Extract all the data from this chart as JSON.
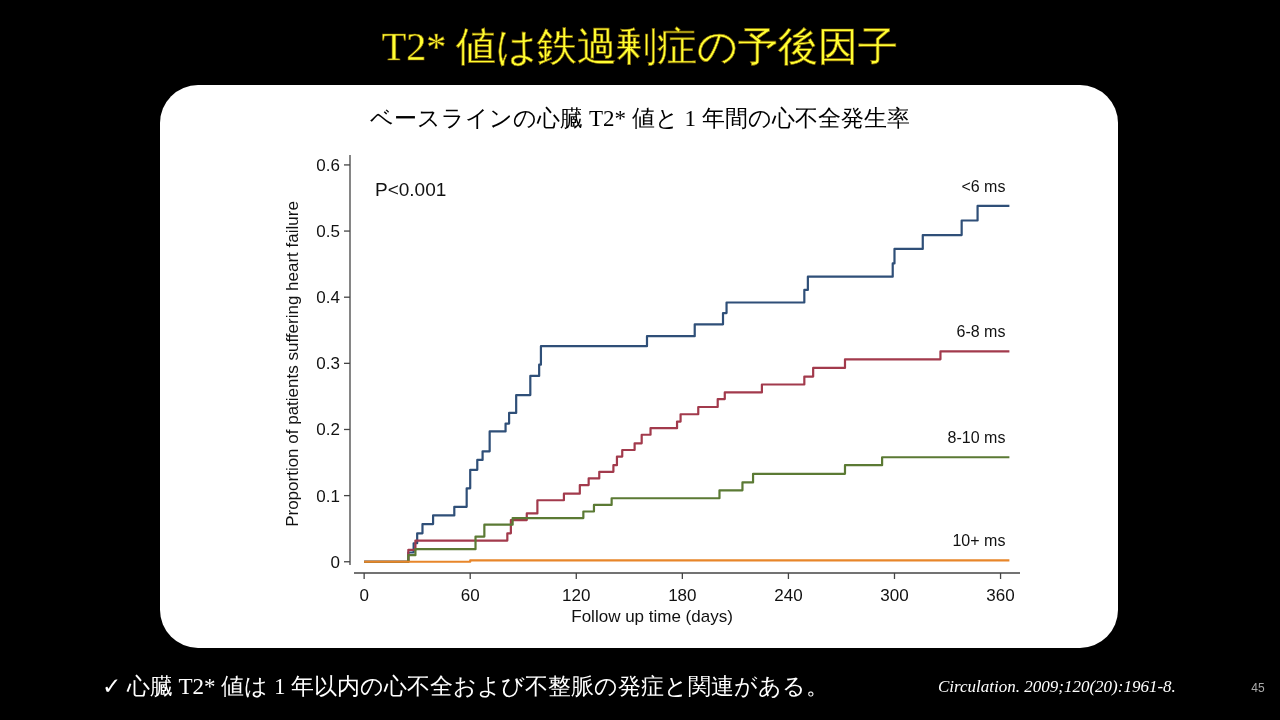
{
  "chart_data": {
    "type": "step",
    "title": "T2* 値は鉄過剰症の予後因子",
    "subtitle": "ベースラインの心臓 T2* 値と 1 年間の心不全発生率",
    "xlabel": "Follow up time (days)",
    "ylabel": "Proportion of patients suffering heart failure",
    "xlim": [
      -8,
      371
    ],
    "ylim": [
      -0.017,
      0.615
    ],
    "xticks": [
      0,
      60,
      120,
      180,
      240,
      300,
      360
    ],
    "yticks": [
      0,
      0.1,
      0.2,
      0.3,
      0.4,
      0.5,
      0.6
    ],
    "series": [
      {
        "name": "<6 ms",
        "color": "#2f4f78",
        "x": [
          0,
          25,
          28,
          30,
          33,
          39,
          51,
          58,
          60,
          64,
          67,
          71,
          80,
          82,
          86,
          94,
          99,
          100,
          160,
          187,
          203,
          205,
          249,
          251,
          299,
          300,
          316,
          338,
          347,
          365
        ],
        "values": [
          0,
          0.014,
          0.028,
          0.043,
          0.057,
          0.07,
          0.083,
          0.111,
          0.139,
          0.154,
          0.167,
          0.197,
          0.209,
          0.225,
          0.252,
          0.281,
          0.298,
          0.326,
          0.341,
          0.359,
          0.376,
          0.392,
          0.411,
          0.431,
          0.451,
          0.473,
          0.494,
          0.516,
          0.538,
          0.538
        ]
      },
      {
        "name": "6-8 ms",
        "color": "#a23a4c",
        "x": [
          0,
          25,
          29,
          81,
          83,
          92,
          98,
          113,
          122,
          127,
          133,
          141,
          143,
          146,
          153,
          157,
          162,
          177,
          179,
          189,
          200,
          204,
          225,
          249,
          254,
          272,
          326,
          365
        ],
        "values": [
          0,
          0.018,
          0.032,
          0.043,
          0.063,
          0.073,
          0.093,
          0.103,
          0.116,
          0.126,
          0.136,
          0.146,
          0.159,
          0.169,
          0.179,
          0.192,
          0.202,
          0.212,
          0.223,
          0.234,
          0.246,
          0.256,
          0.268,
          0.28,
          0.293,
          0.306,
          0.318,
          0.318
        ]
      },
      {
        "name": "8-10 ms",
        "color": "#5b7a34",
        "x": [
          0,
          25,
          29,
          63,
          68,
          84,
          124,
          130,
          140,
          201,
          214,
          220,
          272,
          293,
          365
        ],
        "values": [
          0,
          0.01,
          0.019,
          0.038,
          0.056,
          0.066,
          0.076,
          0.086,
          0.096,
          0.108,
          0.12,
          0.133,
          0.146,
          0.158,
          0.158
        ]
      },
      {
        "name": "10+ ms",
        "color": "#e8862a",
        "x": [
          0,
          60,
          365
        ],
        "values": [
          0,
          0.002,
          0.002
        ]
      }
    ],
    "annotations": [
      "P<0.001",
      "✓ 心臓 T2* 値は 1 年以内の心不全および不整脈の発症と関連がある。",
      "Circulation. 2009;120(20):1961-8.",
      "45"
    ]
  }
}
